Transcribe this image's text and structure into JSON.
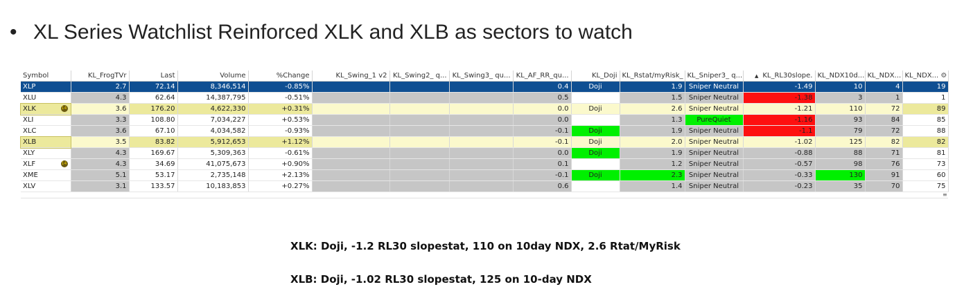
{
  "heading": {
    "bullet": "•",
    "text": "XL Series Watchlist Reinforced XLK and XLB as sectors to watch"
  },
  "columns": [
    "Symbol",
    "KL_FrogTVr",
    "Last",
    "Volume",
    "%Change",
    "KL_Swing_1 v2",
    "KL_Swing2_ q...",
    "KL_Swing3_ qu...",
    "KL_AF_RR_qu...",
    "KL_Doji",
    "KL_Rstat/myRisk_",
    "KL_Sniper3_ q...",
    "KL_RL30slope.",
    "KL_NDX10d...",
    "KL_NDX...",
    "KL_NDX..."
  ],
  "icons": {
    "sort": "sort-ascending-icon",
    "settings": "gear-icon",
    "badge": "alert-badge-icon",
    "scroll": "scroll-grip-icon"
  },
  "rows": [
    {
      "symbol": "XLP",
      "frog": "2.7",
      "last": "72.14",
      "volume": "8,346,514",
      "change": "-0.85%",
      "afrr": "0.4",
      "doji": "Doji",
      "rstat": "1.9",
      "sniper": "Sniper Neutral",
      "rl30": "-1.49",
      "ndx10": "10",
      "ndxa": "4",
      "ndxb": "19",
      "state": "selected"
    },
    {
      "symbol": "XLU",
      "frog": "4.3",
      "last": "62.64",
      "volume": "14,387,795",
      "change": "-0.51%",
      "afrr": "0.5",
      "doji": "",
      "rstat": "1.5",
      "sniper": "Sniper Neutral",
      "rl30": "-1.38",
      "ndx10": "3",
      "ndxa": "1",
      "ndxb": "1",
      "state": ""
    },
    {
      "symbol": "XLK",
      "frog": "3.6",
      "last": "176.20",
      "volume": "4,622,330",
      "change": "+0.31%",
      "afrr": "0.0",
      "doji": "Doji",
      "rstat": "2.6",
      "sniper": "Sniper Neutral",
      "rl30": "-1.21",
      "ndx10": "110",
      "ndxa": "72",
      "ndxb": "89",
      "state": "highlight",
      "badge": "14"
    },
    {
      "symbol": "XLI",
      "frog": "3.3",
      "last": "108.80",
      "volume": "7,034,227",
      "change": "+0.53%",
      "afrr": "0.0",
      "doji": "",
      "rstat": "1.3",
      "sniper": "PureQuiet",
      "rl30": "-1.16",
      "ndx10": "93",
      "ndxa": "84",
      "ndxb": "85",
      "state": ""
    },
    {
      "symbol": "XLC",
      "frog": "3.6",
      "last": "67.10",
      "volume": "4,034,582",
      "change": "-0.93%",
      "afrr": "-0.1",
      "doji": "Doji",
      "rstat": "1.9",
      "sniper": "Sniper Neutral",
      "rl30": "-1.1",
      "ndx10": "79",
      "ndxa": "72",
      "ndxb": "88",
      "state": ""
    },
    {
      "symbol": "XLB",
      "frog": "3.5",
      "last": "83.82",
      "volume": "5,912,653",
      "change": "+1.12%",
      "afrr": "-0.1",
      "doji": "Doji",
      "rstat": "2.0",
      "sniper": "Sniper Neutral",
      "rl30": "-1.02",
      "ndx10": "125",
      "ndxa": "82",
      "ndxb": "82",
      "state": "highlight"
    },
    {
      "symbol": "XLY",
      "frog": "4.3",
      "last": "169.67",
      "volume": "5,309,363",
      "change": "-0.61%",
      "afrr": "0.0",
      "doji": "Doji",
      "rstat": "1.9",
      "sniper": "Sniper Neutral",
      "rl30": "-0.88",
      "ndx10": "88",
      "ndxa": "71",
      "ndxb": "81",
      "state": ""
    },
    {
      "symbol": "XLF",
      "frog": "4.3",
      "last": "34.69",
      "volume": "41,075,673",
      "change": "+0.90%",
      "afrr": "0.1",
      "doji": "",
      "rstat": "1.2",
      "sniper": "Sniper Neutral",
      "rl30": "-0.57",
      "ndx10": "98",
      "ndxa": "76",
      "ndxb": "73",
      "state": "",
      "badge": "14"
    },
    {
      "symbol": "XME",
      "frog": "5.1",
      "last": "53.17",
      "volume": "2,735,148",
      "change": "+2.13%",
      "afrr": "-0.1",
      "doji": "Doji",
      "rstat": "2.3",
      "sniper": "Sniper Neutral",
      "rl30": "-0.33",
      "ndx10": "130",
      "ndxa": "91",
      "ndxb": "60",
      "state": ""
    },
    {
      "symbol": "XLV",
      "frog": "3.1",
      "last": "133.57",
      "volume": "10,183,853",
      "change": "+0.27%",
      "afrr": "0.6",
      "doji": "",
      "rstat": "1.4",
      "sniper": "Sniper Neutral",
      "rl30": "-0.23",
      "ndx10": "35",
      "ndxa": "70",
      "ndxb": "75",
      "state": ""
    }
  ],
  "notes": [
    "XLK: Doji, -1.2 RL30 slopestat, 110 on 10day NDX, 2.6 Rtat/MyRisk",
    "XLB: Doji, -1.02 RL30 slopestat, 125 on 10-day NDX"
  ]
}
